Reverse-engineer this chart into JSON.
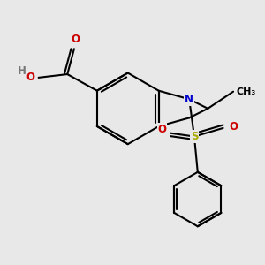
{
  "bg_color": "#e8e8e8",
  "bond_color": "#000000",
  "bond_width": 1.5,
  "atom_colors": {
    "O": "#cc0000",
    "N": "#0000cc",
    "S": "#aaaa00",
    "H": "#777777",
    "C": "#000000"
  },
  "font_size": 8.5,
  "fig_size": [
    3.0,
    3.0
  ],
  "dpi": 100
}
